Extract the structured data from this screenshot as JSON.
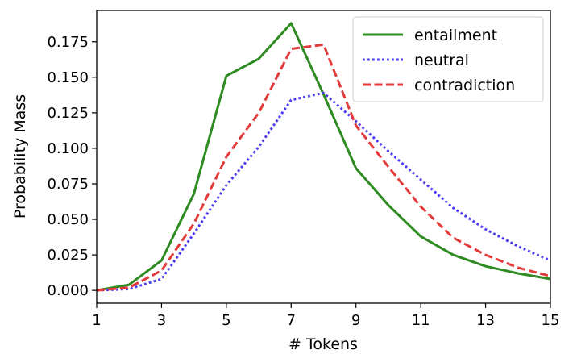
{
  "chart_data": {
    "type": "line",
    "xlabel": "# Tokens",
    "ylabel": "Probability Mass",
    "xlim": [
      1,
      15
    ],
    "ylim": [
      -0.009,
      0.197
    ],
    "xticks": [
      1,
      3,
      5,
      7,
      9,
      11,
      13,
      15
    ],
    "yticks": [
      0.0,
      0.025,
      0.05,
      0.075,
      0.1,
      0.125,
      0.15,
      0.175
    ],
    "ytick_labels": [
      "0.000",
      "0.025",
      "0.050",
      "0.075",
      "0.100",
      "0.125",
      "0.150",
      "0.175"
    ],
    "grid": false,
    "legend_position": "top-right",
    "x": [
      1,
      2,
      3,
      4,
      5,
      6,
      7,
      8,
      9,
      10,
      11,
      12,
      13,
      14,
      15
    ],
    "series": [
      {
        "name": "entailment",
        "color": "#2e8b22",
        "style": "solid",
        "values": [
          0.0,
          0.004,
          0.021,
          0.068,
          0.151,
          0.163,
          0.188,
          0.138,
          0.086,
          0.06,
          0.038,
          0.025,
          0.017,
          0.012,
          0.008
        ]
      },
      {
        "name": "neutral",
        "color": "#4b3cf0",
        "style": "dotted",
        "values": [
          0.0,
          0.001,
          0.008,
          0.04,
          0.074,
          0.101,
          0.134,
          0.139,
          0.119,
          0.098,
          0.078,
          0.058,
          0.043,
          0.031,
          0.021
        ]
      },
      {
        "name": "contradiction",
        "color": "#e23b3b",
        "style": "dashed",
        "values": [
          0.0,
          0.002,
          0.014,
          0.047,
          0.094,
          0.125,
          0.17,
          0.173,
          0.116,
          0.087,
          0.059,
          0.037,
          0.025,
          0.016,
          0.01
        ]
      }
    ]
  }
}
